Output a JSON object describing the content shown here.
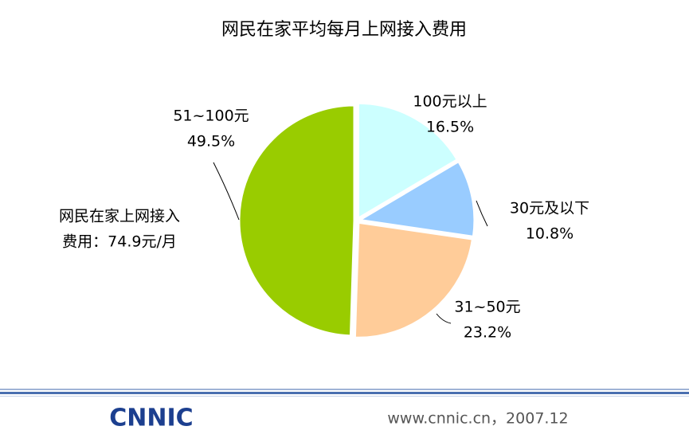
{
  "chart_data": {
    "type": "pie",
    "title": "网民在家平均每月上网接入费用",
    "categories": [
      "100元以上",
      "30元及以下",
      "31~50元",
      "51~100元"
    ],
    "values": [
      16.5,
      10.8,
      23.2,
      49.5
    ],
    "value_labels": [
      "16.5%",
      "10.8%",
      "23.2%",
      "49.5%"
    ],
    "colors": [
      "#ccffff",
      "#99ccff",
      "#ffcc99",
      "#99cc00"
    ],
    "annotation": [
      "网民在家上网接入",
      "费用：74.9元/月"
    ]
  },
  "footer": {
    "logo": "CNNIC",
    "text": "www.cnnic.cn，2007.12"
  }
}
